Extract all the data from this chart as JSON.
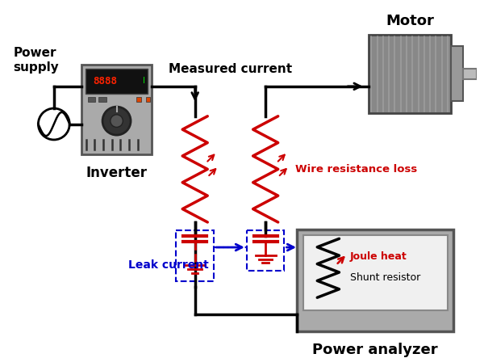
{
  "bg_color": "#ffffff",
  "labels": {
    "power_supply": "Power\nsupply",
    "inverter": "Inverter",
    "motor": "Motor",
    "measured_current": "Measured current",
    "wire_resistance_loss": "Wire resistance loss",
    "leak_current": "Leak current",
    "joule_heat": "Joule heat",
    "shunt_resistor": "Shunt resistor",
    "power_analyzer": "Power analyzer"
  },
  "colors": {
    "black": "#000000",
    "red": "#cc0000",
    "blue": "#0000cc",
    "gray": "#888888",
    "light_gray": "#cccccc",
    "dark_gray": "#555555",
    "inverter_body": "#999999",
    "motor_body": "#888888",
    "wire": "#000000",
    "dashed_blue": "#0000cc",
    "pa_gray": "#aaaaaa",
    "pa_inner": "#ffffff"
  }
}
